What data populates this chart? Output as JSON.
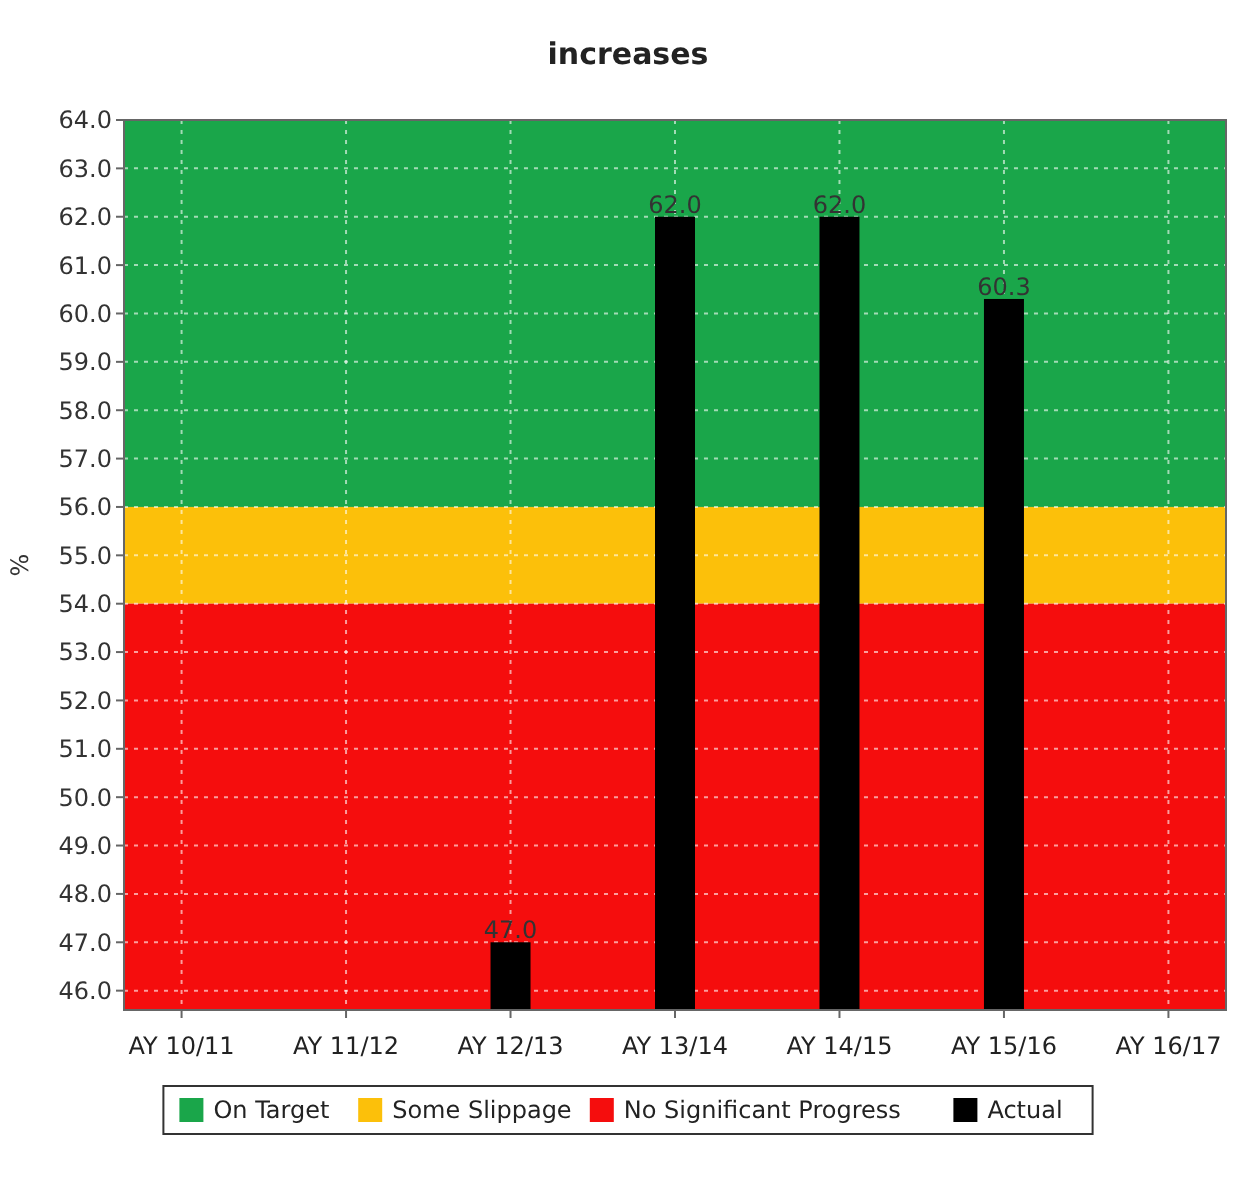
{
  "chart_data": {
    "type": "bar",
    "title": "increases",
    "ylabel": "%",
    "categories": [
      "AY 10/11",
      "AY 11/12",
      "AY 12/13",
      "AY 13/14",
      "AY 14/15",
      "AY 15/16",
      "AY 16/17"
    ],
    "series": [
      {
        "name": "Actual",
        "color": "#000000",
        "values": [
          null,
          null,
          47.0,
          62.0,
          62.0,
          60.3,
          null
        ],
        "value_labels": [
          null,
          null,
          "47.0",
          "62.0",
          "62.0",
          "60.3",
          null
        ]
      }
    ],
    "ylim": [
      45.6,
      64
    ],
    "yticks": [
      {
        "value": 46,
        "label": "46.0"
      },
      {
        "value": 47,
        "label": "47.0"
      },
      {
        "value": 48,
        "label": "48.0"
      },
      {
        "value": 49,
        "label": "49.0"
      },
      {
        "value": 50,
        "label": "50.0"
      },
      {
        "value": 51,
        "label": "51.0"
      },
      {
        "value": 52,
        "label": "52.0"
      },
      {
        "value": 53,
        "label": "53.0"
      },
      {
        "value": 54,
        "label": "54.0"
      },
      {
        "value": 55,
        "label": "55.0"
      },
      {
        "value": 56,
        "label": "56.0"
      },
      {
        "value": 57,
        "label": "57.0"
      },
      {
        "value": 58,
        "label": "58.0"
      },
      {
        "value": 59,
        "label": "59.0"
      },
      {
        "value": 60,
        "label": "60.0"
      },
      {
        "value": 61,
        "label": "61.0"
      },
      {
        "value": 62,
        "label": "62.0"
      },
      {
        "value": 63,
        "label": "63.0"
      },
      {
        "value": 64,
        "label": "64.0"
      }
    ],
    "bands": [
      {
        "axis": "y",
        "from": 56,
        "to": 64,
        "label": "On Target",
        "color": "#1aa64a"
      },
      {
        "axis": "y",
        "from": 54,
        "to": 56,
        "label": "Some Slippage",
        "color": "#fcc00a"
      },
      {
        "axis": "y",
        "from": 45.6,
        "to": 54,
        "label": "No Significant Progress",
        "color": "#f50d0d"
      }
    ],
    "grid": true,
    "legend": "bottom"
  }
}
